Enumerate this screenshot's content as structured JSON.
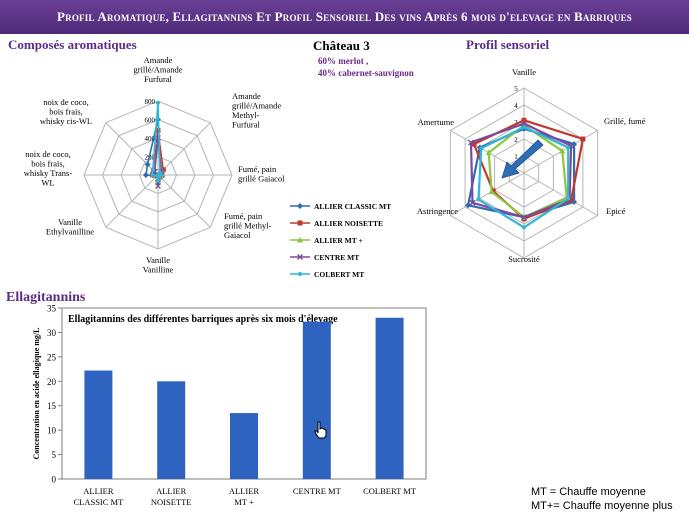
{
  "header": {
    "title": "Profil Aromatique, Ellagitannins Et Profil Sensoriel Des vins Après 6 mois d'elevage en Barriques"
  },
  "sections": {
    "aroma": "Composés aromatiques",
    "sensory": "Profil sensoriel",
    "ellag": "Ellagitannins"
  },
  "chateau": {
    "name": "Château 3",
    "grape1": "60% merlot ,",
    "grape2": "40% cabernet-sauvignon"
  },
  "legend": [
    "ALLIER CLASSIC MT",
    "ALLIER NOISETTE",
    "ALLIER MT +",
    "CENTRE MT",
    "COLBERT MT"
  ],
  "colors": {
    "ALLIER CLASSIC MT": "#2e6db5",
    "ALLIER NOISETTE": "#c0392b",
    "ALLIER MT +": "#8cc63f",
    "CENTRE MT": "#7b4a9e",
    "COLBERT MT": "#33b5d6",
    "bar": "#2f63c0",
    "arrow": "#2e6db5"
  },
  "footnotes": [
    "MT = Chauffe moyenne",
    "MT+= Chauffe moyenne plus"
  ],
  "cursor_icon": "hand-pointer-icon",
  "chart_data": [
    {
      "type": "radar",
      "title": "Composés aromatiques",
      "axes": [
        "Amande grillé/Amande Furfural",
        "Amande grillé/Amande Methyl-Furfural",
        "Fumé, pain grillé Gaiacol",
        "Fumé, pain grillé Methyl-Gaiacol",
        "Vanille Vanilline",
        "Vanille Ethylvanilline",
        "noix de coco, bois frais, whisky Trans-WL",
        "noix de coco, bois frais, whisky cis-WL"
      ],
      "ticks": [
        "0",
        "200",
        "400",
        "600",
        "800"
      ],
      "range": [
        0,
        800
      ],
      "series": [
        {
          "name": "ALLIER CLASSIC MT",
          "values": [
            600,
            40,
            30,
            20,
            60,
            10,
            130,
            160
          ]
        },
        {
          "name": "ALLIER NOISETTE",
          "values": [
            480,
            80,
            40,
            30,
            80,
            10,
            60,
            70
          ]
        },
        {
          "name": "ALLIER MT +",
          "values": [
            350,
            60,
            50,
            30,
            70,
            10,
            50,
            60
          ]
        },
        {
          "name": "CENTRE MT",
          "values": [
            400,
            50,
            40,
            25,
            120,
            10,
            40,
            50
          ]
        },
        {
          "name": "COLBERT MT",
          "values": [
            780,
            30,
            35,
            20,
            60,
            10,
            60,
            80
          ]
        }
      ]
    },
    {
      "type": "radar",
      "title": "Profil sensoriel",
      "axes": [
        "Vanille",
        "Grillé, fumé",
        "Epicé",
        "Sucrosité",
        "Astringence",
        "Amertume"
      ],
      "ticks": [
        "1",
        "2",
        "3",
        "4",
        "5"
      ],
      "range": [
        0,
        5
      ],
      "series": [
        {
          "name": "ALLIER CLASSIC MT",
          "values": [
            2.6,
            3.4,
            3.4,
            2.6,
            3.8,
            3.0
          ]
        },
        {
          "name": "ALLIER NOISETTE",
          "values": [
            3.1,
            4.0,
            3.2,
            2.7,
            2.1,
            3.4
          ]
        },
        {
          "name": "ALLIER MT +",
          "values": [
            2.8,
            2.6,
            2.9,
            2.6,
            2.2,
            2.4
          ]
        },
        {
          "name": "CENTRE MT",
          "values": [
            2.9,
            3.2,
            3.1,
            2.6,
            3.5,
            3.6
          ]
        },
        {
          "name": "COLBERT MT",
          "values": [
            2.7,
            3.0,
            3.0,
            3.2,
            3.1,
            2.9
          ]
        }
      ]
    },
    {
      "type": "bar",
      "title": "Ellagitannins des différentes barriques après six mois d'élevage",
      "ylabel": "Concentration en acide ellagique mg/L",
      "categories": [
        "ALLIER CLASSIC MT",
        "ALLIER NOISETTE",
        "ALLIER MT +",
        "CENTRE MT",
        "COLBERT MT"
      ],
      "values": [
        22.2,
        20.0,
        13.5,
        32.2,
        33.0
      ],
      "ylim": [
        0,
        35
      ],
      "yticks": [
        "0",
        "5",
        "10",
        "15",
        "20",
        "25",
        "30",
        "35"
      ]
    }
  ]
}
